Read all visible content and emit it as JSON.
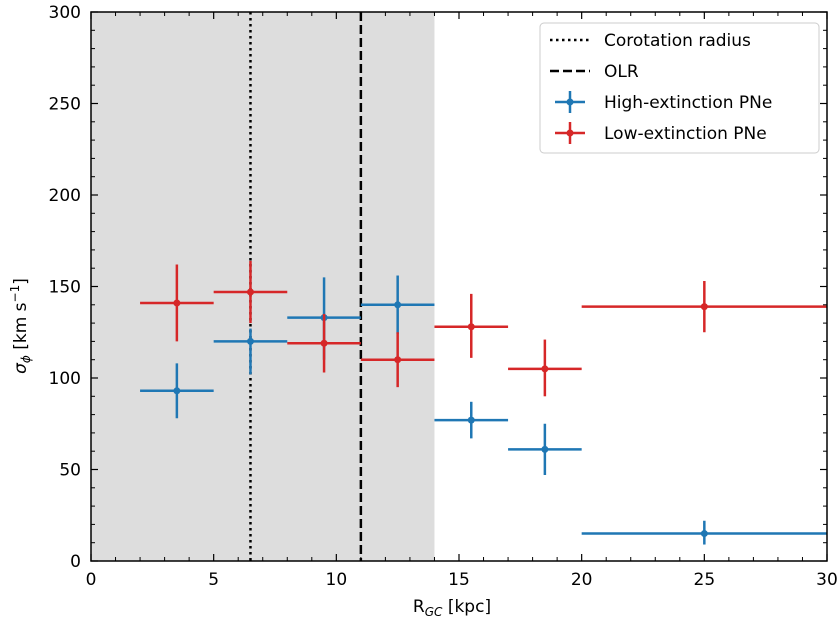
{
  "chart_data": {
    "type": "scatter",
    "title": "",
    "xlabel": {
      "main": "R",
      "sub": "GC",
      "unit": " [kpc]"
    },
    "ylabel": {
      "symbol": "σ",
      "sub": "ϕ",
      "unit": " [km s",
      "exp": "−1",
      "close": "]"
    },
    "xlim": [
      0,
      30
    ],
    "ylim": [
      0,
      300
    ],
    "xticks": [
      0,
      5,
      10,
      15,
      20,
      25,
      30
    ],
    "yticks": [
      0,
      50,
      100,
      150,
      200,
      250,
      300
    ],
    "grid": false,
    "legend_position": "top-right",
    "shaded_region": {
      "x_from": 0,
      "x_to": 14,
      "color": "#dddddd"
    },
    "vertical_lines": [
      {
        "name": "Corotation radius",
        "x": 6.5,
        "style": "dotted",
        "color": "#000000"
      },
      {
        "name": "OLR",
        "x": 11.0,
        "style": "dashed",
        "color": "#000000"
      }
    ],
    "series": [
      {
        "name": "High-extinction PNe",
        "color": "#1f77b4",
        "points": [
          {
            "x": 3.5,
            "y": 93,
            "xerr": [
              2,
              5
            ],
            "yerr": [
              78,
              108
            ]
          },
          {
            "x": 6.5,
            "y": 120,
            "xerr": [
              5,
              8
            ],
            "yerr": [
              102,
              127
            ]
          },
          {
            "x": 9.5,
            "y": 133,
            "xerr": [
              8,
              11
            ],
            "yerr": [
              110,
              155
            ]
          },
          {
            "x": 12.5,
            "y": 140,
            "xerr": [
              11,
              14
            ],
            "yerr": [
              124,
              156
            ]
          },
          {
            "x": 15.5,
            "y": 77,
            "xerr": [
              14,
              17
            ],
            "yerr": [
              67,
              87
            ]
          },
          {
            "x": 18.5,
            "y": 61,
            "xerr": [
              17,
              20
            ],
            "yerr": [
              47,
              75
            ]
          },
          {
            "x": 25,
            "y": 15,
            "xerr": [
              20,
              30
            ],
            "yerr": [
              9,
              22
            ]
          }
        ]
      },
      {
        "name": "Low-extinction PNe",
        "color": "#d62728",
        "points": [
          {
            "x": 3.5,
            "y": 141,
            "xerr": [
              2,
              5
            ],
            "yerr": [
              120,
              162
            ]
          },
          {
            "x": 6.5,
            "y": 147,
            "xerr": [
              5,
              8
            ],
            "yerr": [
              130,
              164
            ]
          },
          {
            "x": 9.5,
            "y": 119,
            "xerr": [
              8,
              11
            ],
            "yerr": [
              103,
              135
            ]
          },
          {
            "x": 12.5,
            "y": 110,
            "xerr": [
              11,
              14
            ],
            "yerr": [
              95,
              125
            ]
          },
          {
            "x": 15.5,
            "y": 128,
            "xerr": [
              14,
              17
            ],
            "yerr": [
              111,
              146
            ]
          },
          {
            "x": 18.5,
            "y": 105,
            "xerr": [
              17,
              20
            ],
            "yerr": [
              90,
              121
            ]
          },
          {
            "x": 25,
            "y": 139,
            "xerr": [
              20,
              30
            ],
            "yerr": [
              125,
              153
            ]
          }
        ]
      }
    ]
  }
}
